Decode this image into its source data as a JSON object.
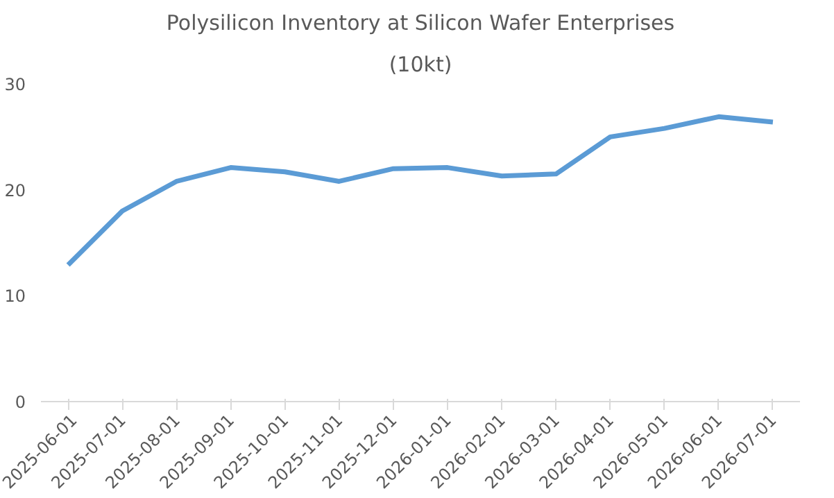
{
  "chart_data": {
    "type": "line",
    "title": "Polysilicon Inventory at Silicon Wafer Enterprises",
    "subtitle": "(10kt)",
    "categories": [
      "2025-06-01",
      "2025-07-01",
      "2025-08-01",
      "2025-09-01",
      "2025-10-01",
      "2025-11-01",
      "2025-12-01",
      "2026-01-01",
      "2026-02-01",
      "2026-03-01",
      "2026-04-01",
      "2026-05-01",
      "2026-06-01",
      "2026-07-01"
    ],
    "series": [
      {
        "color": "#5b9bd5",
        "values": [
          12.9,
          18.0,
          20.8,
          22.1,
          21.7,
          20.8,
          22.0,
          22.1,
          21.3,
          21.5,
          25.0,
          25.8,
          26.9,
          26.4
        ]
      }
    ],
    "ylim": [
      0,
      30
    ],
    "yticks": [
      0,
      10,
      20,
      30
    ],
    "grid": false,
    "marker": "none",
    "line_style": "solid"
  }
}
